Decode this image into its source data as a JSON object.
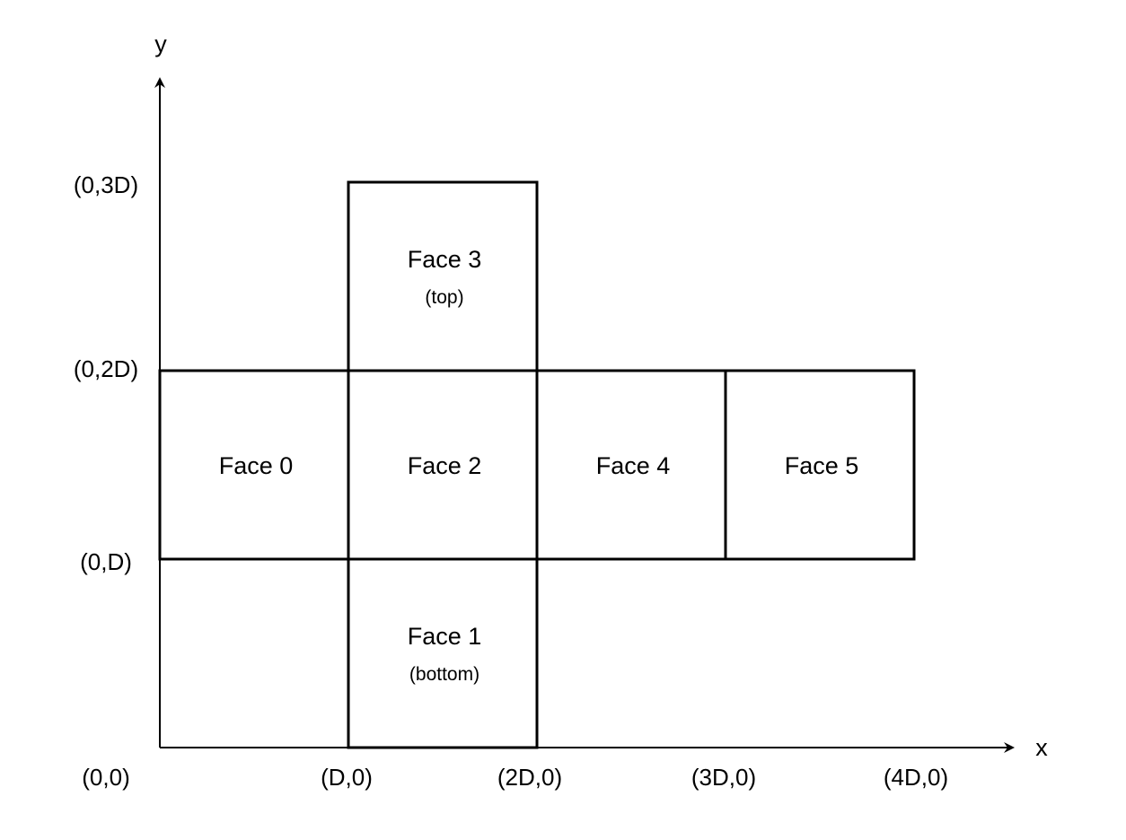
{
  "axes": {
    "x_name": "x",
    "y_name": "y"
  },
  "origin_label": "(0,0)",
  "x_tick_labels": [
    "(D,0)",
    "(2D,0)",
    "(3D,0)",
    "(4D,0)"
  ],
  "y_tick_labels": [
    "(0,D)",
    "(0,2D)",
    "(0,3D)"
  ],
  "faces": [
    {
      "id": "face-0",
      "name": "Face 0",
      "sub": "",
      "col": 0,
      "row": 1
    },
    {
      "id": "face-1",
      "name": "Face 1",
      "sub": "(bottom)",
      "col": 1,
      "row": 0
    },
    {
      "id": "face-2",
      "name": "Face 2",
      "sub": "",
      "col": 1,
      "row": 1
    },
    {
      "id": "face-3",
      "name": "Face 3",
      "sub": "(top)",
      "col": 1,
      "row": 2
    },
    {
      "id": "face-4",
      "name": "Face 4",
      "sub": "",
      "col": 2,
      "row": 1
    },
    {
      "id": "face-5",
      "name": "Face 5",
      "sub": "",
      "col": 3,
      "row": 1
    }
  ]
}
